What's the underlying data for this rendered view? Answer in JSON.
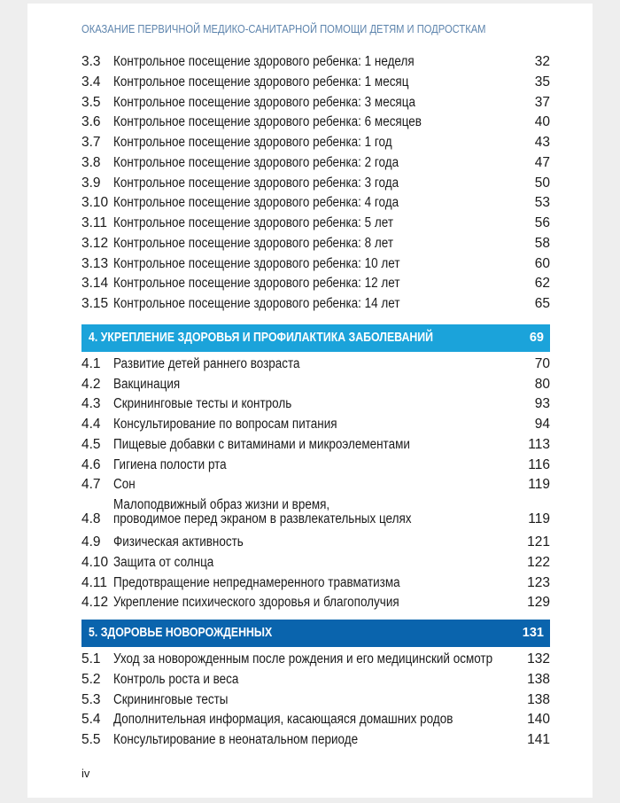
{
  "running_head": "ОКАЗАНИЕ ПЕРВИЧНОЙ МЕДИКО-САНИТАРНОЙ ПОМОЩИ ДЕТЯМ И ПОДРОСТКАМ",
  "colors": {
    "running_head": "#5d84ad",
    "section4_band": "#1ba3da",
    "section5_band": "#0a64ad"
  },
  "section3_entries": [
    {
      "num": "3.3",
      "title": "Контрольное посещение здорового ребенка: 1 неделя",
      "page": "32"
    },
    {
      "num": "3.4",
      "title": "Контрольное посещение здорового ребенка: 1 месяц",
      "page": "35"
    },
    {
      "num": "3.5",
      "title": "Контрольное посещение здорового ребенка: 3 месяца",
      "page": "37"
    },
    {
      "num": "3.6",
      "title": "Контрольное посещение здорового ребенка: 6 месяцев",
      "page": "40"
    },
    {
      "num": "3.7",
      "title": "Контрольное посещение здорового ребенка: 1 год",
      "page": "43"
    },
    {
      "num": "3.8",
      "title": "Контрольное посещение здорового ребенка: 2 года",
      "page": "47"
    },
    {
      "num": "3.9",
      "title": "Контрольное посещение здорового ребенка: 3 года",
      "page": "50"
    },
    {
      "num": "3.10",
      "title": "Контрольное посещение здорового ребенка: 4 года",
      "page": "53"
    },
    {
      "num": "3.11",
      "title": "Контрольное посещение здорового ребенка: 5 лет",
      "page": "56"
    },
    {
      "num": "3.12",
      "title": "Контрольное посещение здорового ребенка: 8 лет",
      "page": "58"
    },
    {
      "num": "3.13",
      "title": "Контрольное посещение здорового ребенка: 10 лет",
      "page": "60"
    },
    {
      "num": "3.14",
      "title": "Контрольное посещение здорового ребенка: 12 лет",
      "page": "62"
    },
    {
      "num": "3.15",
      "title": "Контрольное посещение здорового ребенка: 14 лет",
      "page": "65"
    }
  ],
  "section4": {
    "title": "4. УКРЕПЛЕНИЕ ЗДОРОВЬЯ И ПРОФИЛАКТИКА ЗАБОЛЕВАНИЙ",
    "page": "69",
    "entries": [
      {
        "num": "4.1",
        "title": "Развитие детей раннего возраста",
        "page": "70"
      },
      {
        "num": "4.2",
        "title": "Вакцинация",
        "page": "80"
      },
      {
        "num": "4.3",
        "title": "Скрининговые тесты и контроль",
        "page": "93"
      },
      {
        "num": "4.4",
        "title": "Консультирование по вопросам питания",
        "page": "94"
      },
      {
        "num": "4.5",
        "title": "Пищевые добавки с витаминами и микроэлементами",
        "page": "113"
      },
      {
        "num": "4.6",
        "title": "Гигиена полости рта",
        "page": "116"
      },
      {
        "num": "4.7",
        "title": "Сон",
        "page": "119"
      },
      {
        "num": "4.8",
        "title_line1": "Малоподвижный образ жизни и время,",
        "title_line2": "проводимое перед экраном в развлекательных целях",
        "page": "119"
      },
      {
        "num": "4.9",
        "title": "Физическая активность",
        "page": "121"
      },
      {
        "num": "4.10",
        "title": "Защита от солнца",
        "page": "122"
      },
      {
        "num": "4.11",
        "title": "Предотвращение непреднамеренного травматизма",
        "page": "123"
      },
      {
        "num": "4.12",
        "title": "Укрепление психического здоровья и благополучия",
        "page": "129"
      }
    ]
  },
  "section5": {
    "title": "5. ЗДОРОВЬЕ НОВОРОЖДЕННЫХ",
    "page": "131",
    "entries": [
      {
        "num": "5.1",
        "title": "Уход за новорожденным после рождения и его медицинский осмотр",
        "page": "132"
      },
      {
        "num": "5.2",
        "title": "Контроль роста и веса",
        "page": "138"
      },
      {
        "num": "5.3",
        "title": "Скрининговые тесты",
        "page": "138"
      },
      {
        "num": "5.4",
        "title": "Дополнительная информация, касающаяся домашних родов",
        "page": "140"
      },
      {
        "num": "5.5",
        "title": "Консультирование в неонатальном периоде",
        "page": "141"
      }
    ]
  },
  "folio": "iv"
}
